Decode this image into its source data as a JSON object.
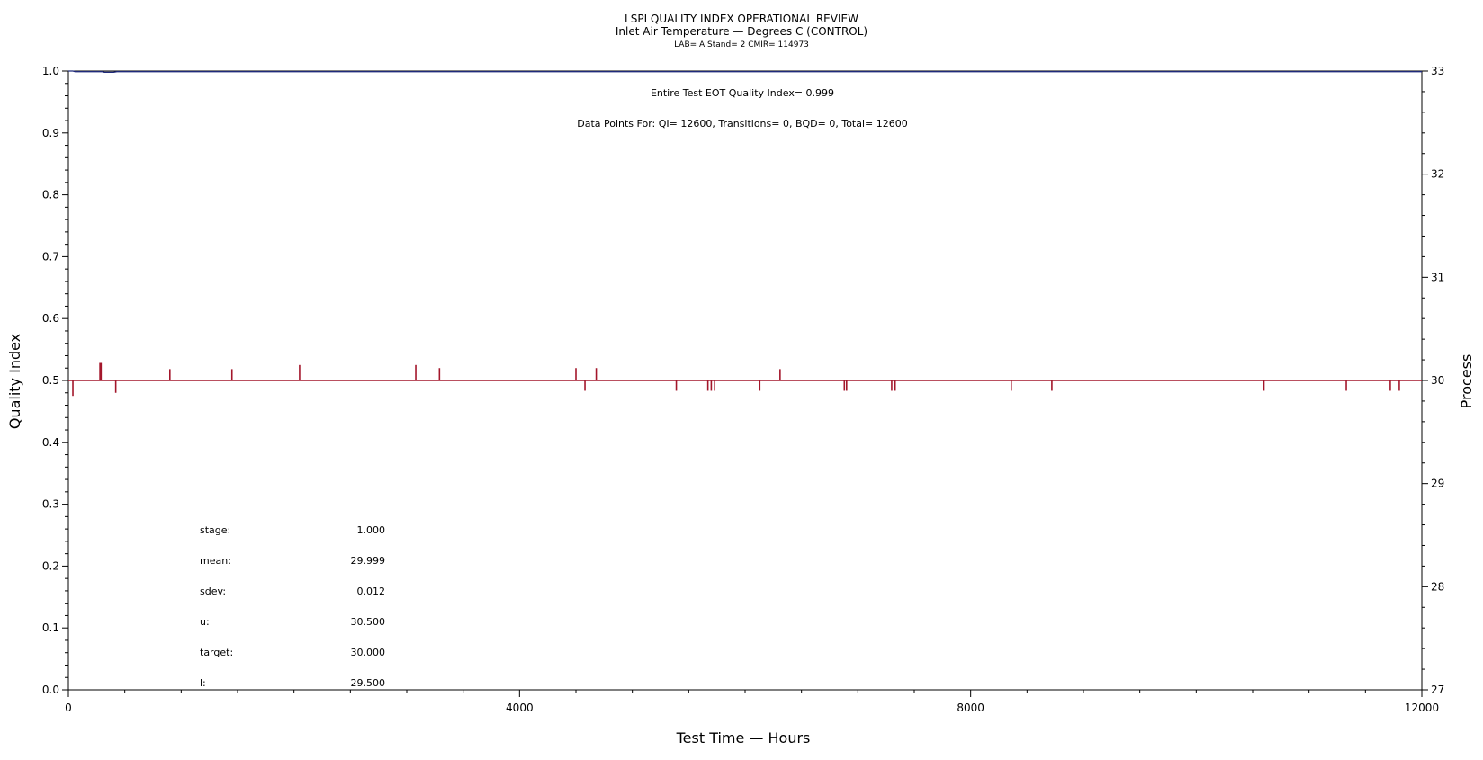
{
  "colors": {
    "qi_line": "#1f2a7a",
    "process_line": "#a3162b",
    "axis": "#000000"
  },
  "chart_data": {
    "type": "line",
    "title": "LSPI QUALITY INDEX OPERATIONAL REVIEW",
    "subtitle": "Inlet Air Temperature — Degrees C (CONTROL)",
    "subtitle2": "LAB= A Stand= 2 CMIR= 114973",
    "xlabel": "Test Time — Hours",
    "ylabel_left": "Quality Index",
    "ylabel_right": "Process",
    "xlim": [
      0,
      12000
    ],
    "ylim_left": [
      0.0,
      1.0
    ],
    "ylim_right": [
      27,
      33
    ],
    "x_ticks": [
      "0",
      "4000",
      "8000",
      "12000"
    ],
    "y_left_ticks": [
      "0.0",
      "0.1",
      "0.2",
      "0.3",
      "0.4",
      "0.5",
      "0.6",
      "0.7",
      "0.8",
      "0.9",
      "1.0"
    ],
    "y_right_ticks": [
      "27",
      "28",
      "29",
      "30",
      "31",
      "32",
      "33"
    ],
    "annotations": {
      "eot": "Entire Test EOT Quality Index=   0.999",
      "datapoints": "Data Points For: QI= 12600, Transitions=     0, BQD=     0, Total= 12600"
    },
    "stats": [
      {
        "label": "stage:",
        "value": "1.000"
      },
      {
        "label": "mean:",
        "value": "29.999"
      },
      {
        "label": "sdev:",
        "value": "0.012"
      },
      {
        "label": "u:",
        "value": "30.500"
      },
      {
        "label": "target:",
        "value": "30.000"
      },
      {
        "label": "l:",
        "value": "29.500"
      }
    ],
    "series": [
      {
        "axis": "left",
        "x": [
          0,
          40,
          60,
          300,
          320,
          400,
          430,
          450,
          12000
        ],
        "y": [
          1.0,
          1.0,
          0.999,
          0.999,
          0.998,
          0.998,
          0.999,
          0.999,
          0.999
        ]
      },
      {
        "axis": "right",
        "baseline": 30.0,
        "x": [
          0,
          12000
        ],
        "y": [
          30.0,
          30.0
        ],
        "spikes": [
          {
            "x": 40,
            "y": 29.85
          },
          {
            "x": 280,
            "y": 30.17
          },
          {
            "x": 290,
            "y": 30.17
          },
          {
            "x": 420,
            "y": 29.88
          },
          {
            "x": 900,
            "y": 30.11
          },
          {
            "x": 1450,
            "y": 30.11
          },
          {
            "x": 2050,
            "y": 30.15
          },
          {
            "x": 3080,
            "y": 30.15
          },
          {
            "x": 3290,
            "y": 30.12
          },
          {
            "x": 4500,
            "y": 30.12
          },
          {
            "x": 4580,
            "y": 29.9
          },
          {
            "x": 4680,
            "y": 30.12
          },
          {
            "x": 5390,
            "y": 29.9
          },
          {
            "x": 5670,
            "y": 29.9
          },
          {
            "x": 5700,
            "y": 29.9
          },
          {
            "x": 5730,
            "y": 29.9
          },
          {
            "x": 6130,
            "y": 29.9
          },
          {
            "x": 6310,
            "y": 30.11
          },
          {
            "x": 6880,
            "y": 29.9
          },
          {
            "x": 6900,
            "y": 29.9
          },
          {
            "x": 7300,
            "y": 29.9
          },
          {
            "x": 7330,
            "y": 29.9
          },
          {
            "x": 8360,
            "y": 29.9
          },
          {
            "x": 8720,
            "y": 29.9
          },
          {
            "x": 10600,
            "y": 29.9
          },
          {
            "x": 11330,
            "y": 29.9
          },
          {
            "x": 11720,
            "y": 29.9
          },
          {
            "x": 11800,
            "y": 29.9
          }
        ]
      }
    ]
  }
}
